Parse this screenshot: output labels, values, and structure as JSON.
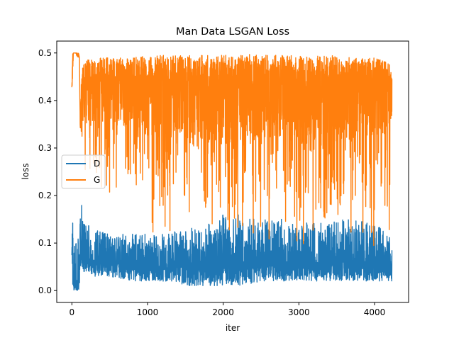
{
  "chart_data": {
    "type": "line",
    "title": "Man Data LSGAN Loss",
    "xlabel": "iter",
    "ylabel": "loss",
    "xlim": [
      -200,
      4450
    ],
    "ylim": [
      -0.025,
      0.525
    ],
    "xticks": [
      0,
      1000,
      2000,
      3000,
      4000
    ],
    "xtick_labels": [
      "0",
      "1000",
      "2000",
      "3000",
      "4000"
    ],
    "yticks": [
      0.0,
      0.1,
      0.2,
      0.3,
      0.4,
      0.5
    ],
    "ytick_labels": [
      "0.0",
      "0.1",
      "0.2",
      "0.3",
      "0.4",
      "0.5"
    ],
    "grid": false,
    "legend_position": "center-left",
    "series": [
      {
        "name": "D",
        "color": "#1f77b4",
        "description_points": {
          "x": [
            0,
            10,
            20,
            50,
            70,
            90,
            100,
            110,
            130,
            150,
            200,
            300,
            500,
            800,
            1000,
            1200,
            1500,
            1800,
            2000,
            2300,
            2500,
            2800,
            3000,
            3300,
            3500,
            3800,
            4000,
            4200,
            4230
          ],
          "upper": [
            0.2,
            0.19,
            0.1,
            0.12,
            0.13,
            0.11,
            0.08,
            0.18,
            0.18,
            0.14,
            0.14,
            0.13,
            0.12,
            0.12,
            0.12,
            0.12,
            0.13,
            0.14,
            0.16,
            0.16,
            0.15,
            0.15,
            0.14,
            0.15,
            0.15,
            0.15,
            0.14,
            0.12,
            0.12
          ],
          "lower": [
            0.0,
            0.0,
            0.0,
            0.0,
            0.0,
            0.0,
            0.01,
            0.05,
            0.04,
            0.04,
            0.04,
            0.03,
            0.03,
            0.02,
            0.02,
            0.02,
            0.01,
            0.01,
            0.01,
            0.01,
            0.02,
            0.02,
            0.02,
            0.02,
            0.02,
            0.02,
            0.02,
            0.02,
            0.02
          ],
          "center": [
            0.07,
            0.06,
            0.01,
            0.01,
            0.01,
            0.01,
            0.06,
            0.1,
            0.09,
            0.08,
            0.07,
            0.065,
            0.06,
            0.06,
            0.055,
            0.055,
            0.055,
            0.055,
            0.055,
            0.055,
            0.06,
            0.06,
            0.06,
            0.06,
            0.06,
            0.06,
            0.06,
            0.06,
            0.05
          ]
        }
      },
      {
        "name": "G",
        "color": "#ff7f0e",
        "description_points": {
          "x": [
            0,
            10,
            20,
            50,
            70,
            90,
            100,
            110,
            130,
            150,
            200,
            300,
            500,
            800,
            1000,
            1200,
            1500,
            1800,
            2000,
            2300,
            2500,
            2800,
            3000,
            3300,
            3500,
            3800,
            4000,
            4200,
            4230
          ],
          "upper": [
            0.43,
            0.5,
            0.5,
            0.5,
            0.5,
            0.5,
            0.49,
            0.35,
            0.47,
            0.48,
            0.485,
            0.49,
            0.49,
            0.49,
            0.495,
            0.495,
            0.495,
            0.495,
            0.495,
            0.5,
            0.495,
            0.495,
            0.495,
            0.495,
            0.495,
            0.49,
            0.49,
            0.48,
            0.45
          ],
          "lower": [
            0.41,
            0.45,
            0.5,
            0.5,
            0.49,
            0.49,
            0.49,
            0.34,
            0.3,
            0.25,
            0.25,
            0.21,
            0.2,
            0.18,
            0.1,
            0.1,
            0.11,
            0.09,
            0.08,
            0.1,
            0.1,
            0.1,
            0.09,
            0.1,
            0.09,
            0.1,
            0.09,
            0.09,
            0.33
          ],
          "center": [
            0.42,
            0.47,
            0.5,
            0.5,
            0.495,
            0.495,
            0.49,
            0.345,
            0.38,
            0.4,
            0.4,
            0.4,
            0.4,
            0.39,
            0.38,
            0.38,
            0.38,
            0.37,
            0.37,
            0.38,
            0.38,
            0.38,
            0.37,
            0.38,
            0.37,
            0.38,
            0.38,
            0.38,
            0.4
          ]
        }
      }
    ]
  }
}
